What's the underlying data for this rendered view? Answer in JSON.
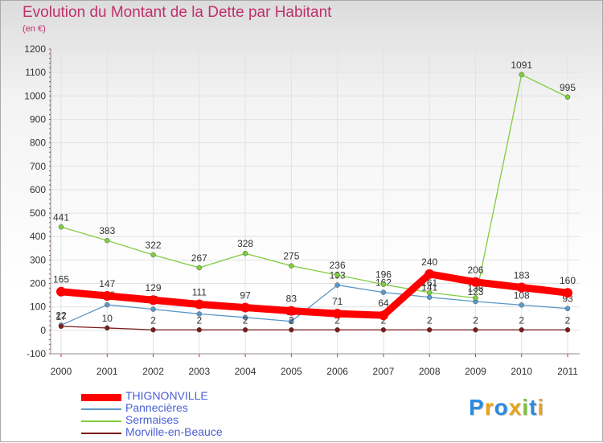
{
  "header": {
    "title": "Evolution du Montant de la Dette par Habitant",
    "subtitle": "(en €)"
  },
  "logo": {
    "text": "Proxiti",
    "letters": [
      {
        "ch": "P",
        "color": "#2a8be0"
      },
      {
        "ch": "r",
        "color": "#e8a21b"
      },
      {
        "ch": "o",
        "color": "#2a8be0"
      },
      {
        "ch": "x",
        "color": "#e8a21b"
      },
      {
        "ch": "i",
        "color": "#7cc23a"
      },
      {
        "ch": "t",
        "color": "#2a8be0"
      },
      {
        "ch": "i",
        "color": "#e8a21b"
      }
    ]
  },
  "chart_data": {
    "type": "line",
    "title": "Evolution du Montant de la Dette par Habitant",
    "subtitle": "(en €)",
    "x": [
      "2000",
      "2001",
      "2002",
      "2003",
      "2004",
      "2005",
      "2006",
      "2007",
      "2008",
      "2009",
      "2010",
      "2011"
    ],
    "ylim": [
      -100,
      1200
    ],
    "yticks": [
      -100,
      0,
      100,
      200,
      300,
      400,
      500,
      600,
      700,
      800,
      900,
      1000,
      1100,
      1200
    ],
    "grid": true,
    "legend_position": "bottom-left",
    "series": [
      {
        "name": "THIGNONVILLE",
        "color": "#ff0000",
        "highlight": true,
        "values": [
          165,
          147,
          129,
          111,
          97,
          83,
          71,
          64,
          240,
          206,
          183,
          160
        ]
      },
      {
        "name": "Pannecières",
        "color": "#5b97c7",
        "highlight": false,
        "values": [
          22,
          109,
          90,
          70,
          55,
          38,
          193,
          162,
          141,
          123,
          108,
          93
        ]
      },
      {
        "name": "Sermaises",
        "color": "#80cc40",
        "highlight": false,
        "values": [
          441,
          383,
          322,
          267,
          328,
          275,
          236,
          196,
          161,
          138,
          1091,
          995
        ]
      },
      {
        "name": "Morville-en-Beauce",
        "color": "#7b1c1c",
        "highlight": false,
        "values": [
          17,
          10,
          2,
          2,
          2,
          2,
          2,
          2,
          2,
          2,
          2,
          2
        ]
      }
    ]
  }
}
